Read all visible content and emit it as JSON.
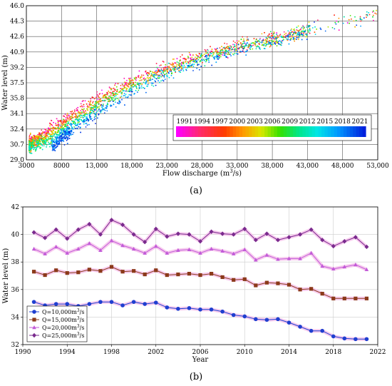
{
  "chart_data": [
    {
      "type": "scatter",
      "panel_label": "(a)",
      "xlabel": "Flow discharge (m",
      "xlabel_sup": "3",
      "xlabel_tail": "/s)",
      "ylabel": "Water level (m)",
      "xlim": [
        3000,
        53000
      ],
      "ylim": [
        29.0,
        46.0
      ],
      "x_ticks": [
        3000,
        8000,
        13000,
        18000,
        23000,
        28000,
        33000,
        38000,
        43000,
        48000,
        53000
      ],
      "x_tick_labels": [
        "3000",
        "8000",
        "13,000",
        "18,000",
        "23,000",
        "28,000",
        "33,000",
        "38,000",
        "43,000",
        "48,000",
        "53,000"
      ],
      "y_ticks": [
        29.0,
        30.7,
        32.4,
        34.1,
        35.8,
        37.5,
        39.2,
        40.9,
        42.6,
        44.3,
        46.0
      ],
      "y_tick_labels": [
        "29.0",
        "30.7",
        "32.4",
        "34.1",
        "35.8",
        "37.5",
        "39.2",
        "40.9",
        "42.6",
        "44.3",
        "46.0"
      ],
      "grid": true,
      "colorbar": {
        "labels": [
          "1991",
          "1994",
          "1997",
          "2000",
          "2003",
          "2006",
          "2009",
          "2012",
          "2015",
          "2018",
          "2021"
        ],
        "range": [
          1991,
          2021
        ]
      },
      "relationship": {
        "description_points_early_year": [
          [
            3500,
            30.9
          ],
          [
            8000,
            33.4
          ],
          [
            13000,
            35.8
          ],
          [
            18000,
            37.8
          ],
          [
            23000,
            39.3
          ],
          [
            28000,
            40.6
          ],
          [
            33000,
            41.6
          ],
          [
            38000,
            42.4
          ],
          [
            43000,
            43.4
          ],
          [
            48000,
            44.3
          ],
          [
            52500,
            45.0
          ]
        ],
        "description_points_late_year": [
          [
            6500,
            30.1
          ],
          [
            8000,
            31.2
          ],
          [
            13000,
            33.9
          ],
          [
            18000,
            36.3
          ],
          [
            23000,
            38.3
          ],
          [
            28000,
            39.8
          ],
          [
            33000,
            41.0
          ],
          [
            38000,
            42.0
          ],
          [
            43000,
            43.0
          ]
        ]
      }
    },
    {
      "type": "line",
      "panel_label": "(b)",
      "xlabel": "Year",
      "ylabel": "Water level (m)",
      "xlim": [
        1990,
        2022
      ],
      "ylim": [
        32,
        42
      ],
      "x_ticks": [
        1990,
        1994,
        1998,
        2002,
        2006,
        2010,
        2014,
        2018,
        2022
      ],
      "y_ticks": [
        32,
        34,
        36,
        38,
        40,
        42
      ],
      "x": [
        1991,
        1992,
        1993,
        1994,
        1995,
        1996,
        1997,
        1998,
        1999,
        2000,
        2001,
        2002,
        2003,
        2004,
        2005,
        2006,
        2007,
        2008,
        2009,
        2010,
        2011,
        2012,
        2013,
        2014,
        2015,
        2016,
        2017,
        2018,
        2019,
        2020,
        2021
      ],
      "legend_position": "bottom-left",
      "series": [
        {
          "name": "Q=10,000m",
          "name_sup": "3",
          "name_tail": "/s",
          "color": "#1f3fd0",
          "marker": "circle",
          "values": [
            35.1,
            34.85,
            34.95,
            34.95,
            34.8,
            34.95,
            35.1,
            35.1,
            34.85,
            35.1,
            34.95,
            35.05,
            34.7,
            34.6,
            34.65,
            34.55,
            34.55,
            34.4,
            34.15,
            34.05,
            33.85,
            33.8,
            33.85,
            33.6,
            33.3,
            33.0,
            33.0,
            32.6,
            32.45,
            32.4,
            32.4
          ]
        },
        {
          "name": "Q=15,000m",
          "name_sup": "3",
          "name_tail": "/s",
          "color": "#8b3a1a",
          "marker": "square",
          "values": [
            37.3,
            37.05,
            37.4,
            37.2,
            37.25,
            37.45,
            37.35,
            37.65,
            37.3,
            37.35,
            37.1,
            37.4,
            37.05,
            37.1,
            37.15,
            37.05,
            37.15,
            36.9,
            36.7,
            36.75,
            36.3,
            36.5,
            36.45,
            36.35,
            36.0,
            36.05,
            35.7,
            35.35,
            35.35,
            35.35,
            35.35
          ]
        },
        {
          "name": "Q=20,000m",
          "name_sup": "3",
          "name_tail": "/s",
          "color": "#c25bd8",
          "marker": "triangle",
          "values": [
            38.95,
            38.6,
            39.1,
            38.65,
            38.95,
            39.35,
            38.85,
            39.55,
            39.2,
            38.95,
            38.65,
            39.15,
            38.65,
            38.85,
            38.9,
            38.65,
            38.95,
            38.8,
            38.6,
            38.9,
            38.15,
            38.5,
            38.2,
            38.25,
            38.25,
            38.65,
            37.7,
            37.5,
            37.65,
            37.8,
            37.45
          ]
        },
        {
          "name": "Q=25,000m",
          "name_sup": "3",
          "name_tail": "/s",
          "color": "#7a2b8e",
          "marker": "diamond",
          "values": [
            40.15,
            39.75,
            40.35,
            39.7,
            40.35,
            40.75,
            40.0,
            41.05,
            40.7,
            40.0,
            39.45,
            40.4,
            39.85,
            40.05,
            40.0,
            39.5,
            40.2,
            40.05,
            40.0,
            40.4,
            39.6,
            40.05,
            39.6,
            39.8,
            40.0,
            40.35,
            39.6,
            39.15,
            39.5,
            39.8,
            39.1
          ]
        }
      ]
    }
  ]
}
